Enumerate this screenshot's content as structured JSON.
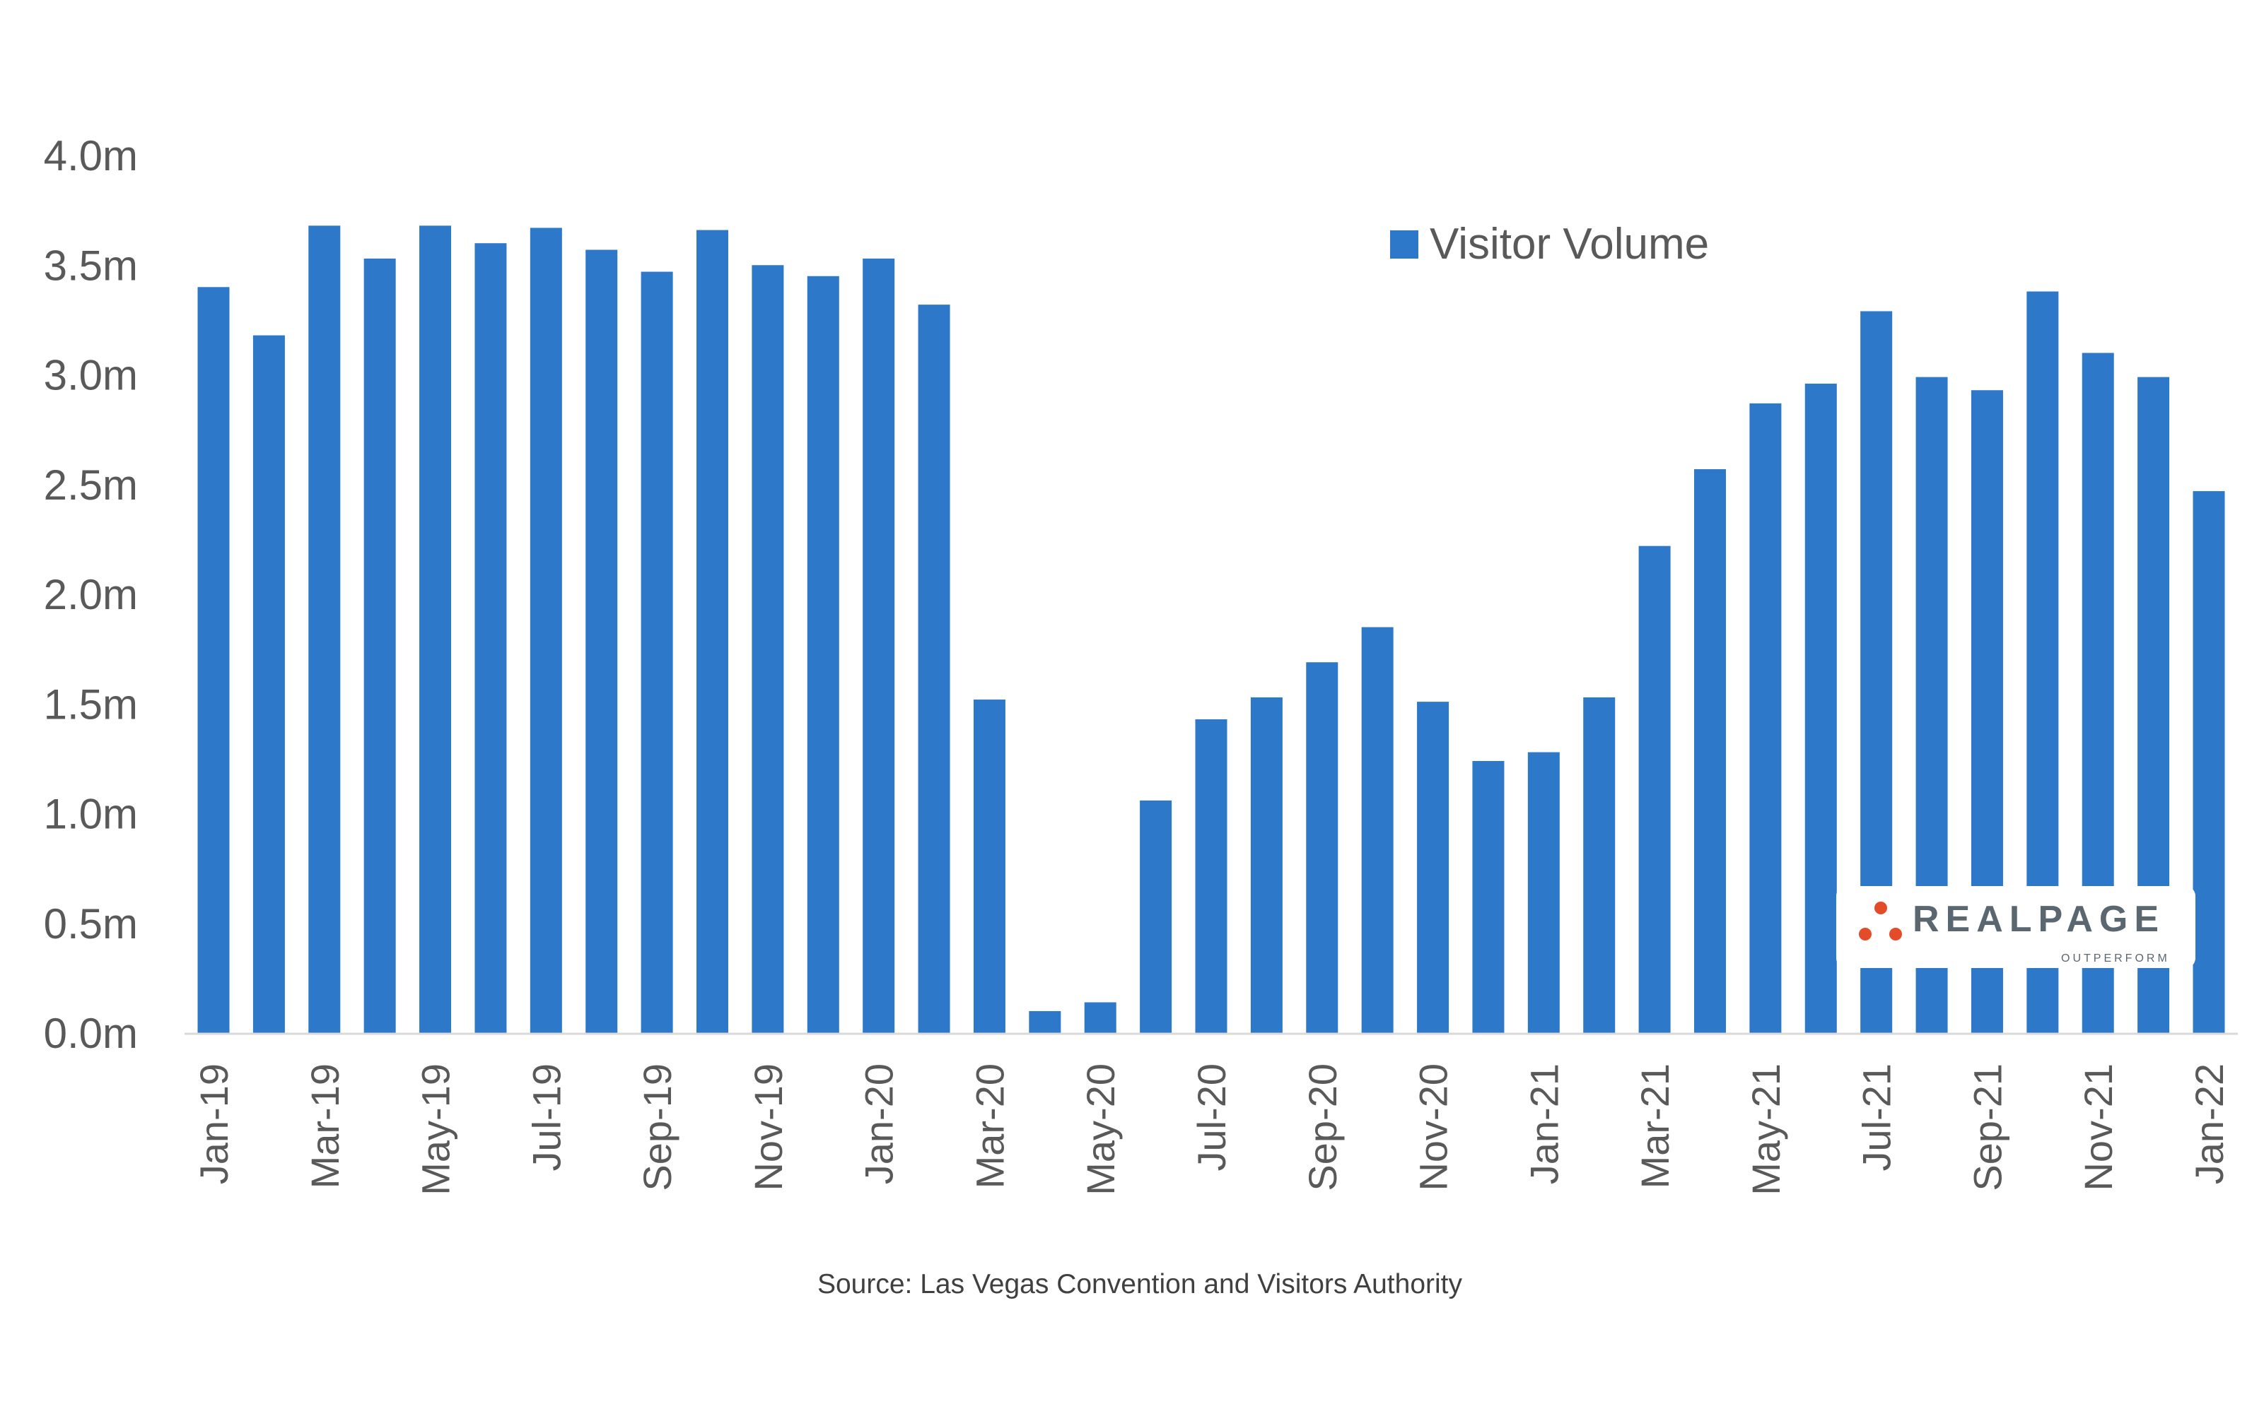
{
  "chart_data": {
    "type": "bar",
    "title": "",
    "xlabel": "",
    "ylabel": "",
    "ylim": [
      0,
      4.0
    ],
    "y_ticks": [
      "0.0m",
      "0.5m",
      "1.0m",
      "1.5m",
      "2.0m",
      "2.5m",
      "3.0m",
      "3.5m",
      "4.0m"
    ],
    "y_tick_values": [
      0,
      0.5,
      1.0,
      1.5,
      2.0,
      2.5,
      3.0,
      3.5,
      4.0
    ],
    "unit": "millions",
    "grid": false,
    "legend_placement": "top-right",
    "categories": [
      "Jan-19",
      "Feb-19",
      "Mar-19",
      "Apr-19",
      "May-19",
      "Jun-19",
      "Jul-19",
      "Aug-19",
      "Sep-19",
      "Oct-19",
      "Nov-19",
      "Dec-19",
      "Jan-20",
      "Feb-20",
      "Mar-20",
      "Apr-20",
      "May-20",
      "Jun-20",
      "Jul-20",
      "Aug-20",
      "Sep-20",
      "Oct-20",
      "Nov-20",
      "Dec-20",
      "Jan-21",
      "Feb-21",
      "Mar-21",
      "Apr-21",
      "May-21",
      "Jun-21",
      "Jul-21",
      "Aug-21",
      "Sep-21",
      "Oct-21",
      "Nov-21",
      "Dec-21",
      "Jan-22"
    ],
    "x_tick_labels": [
      "Jan-19",
      "Mar-19",
      "May-19",
      "Jul-19",
      "Sep-19",
      "Nov-19",
      "Jan-20",
      "Mar-20",
      "May-20",
      "Jul-20",
      "Sep-20",
      "Nov-20",
      "Jan-21",
      "Mar-21",
      "May-21",
      "Jul-21",
      "Sep-21",
      "Nov-21",
      "Jan-22"
    ],
    "series": [
      {
        "name": "Visitor Volume",
        "color": "#2E78C9",
        "values": [
          3.4,
          3.18,
          3.68,
          3.53,
          3.68,
          3.6,
          3.67,
          3.57,
          3.47,
          3.66,
          3.5,
          3.45,
          3.53,
          3.32,
          1.52,
          0.1,
          0.14,
          1.06,
          1.43,
          1.53,
          1.69,
          1.85,
          1.51,
          1.24,
          1.28,
          1.53,
          2.22,
          2.57,
          2.87,
          2.96,
          3.29,
          2.99,
          2.93,
          3.38,
          3.1,
          2.99,
          2.47
        ]
      }
    ]
  },
  "source": "Source: Las Vegas Convention and Visitors Authority",
  "logo": {
    "name": "REALPAGE",
    "tagline": "OUTPERFORM",
    "dot_color": "#E44B28",
    "text_color": "#5B6770"
  }
}
